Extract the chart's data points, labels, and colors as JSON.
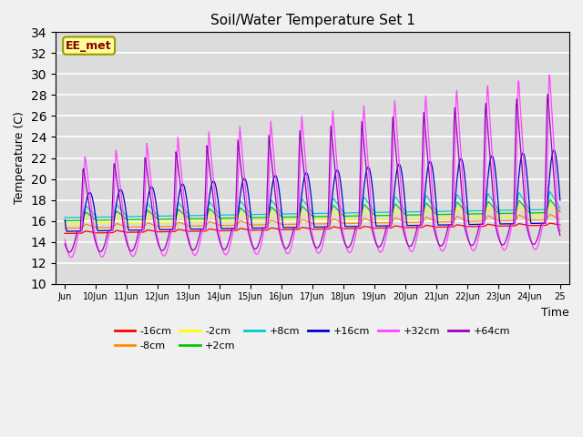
{
  "title": "Soil/Water Temperature Set 1",
  "xlabel": "Time",
  "ylabel": "Temperature (C)",
  "annotation": "EE_met",
  "annotation_color": "#8B0000",
  "annotation_bg": "#FFFF99",
  "annotation_edge": "#999900",
  "ylim": [
    10,
    34
  ],
  "yticks": [
    10,
    12,
    14,
    16,
    18,
    20,
    22,
    24,
    26,
    28,
    30,
    32,
    34
  ],
  "xtick_labels": [
    "Jun",
    "10Jun",
    "11Jun",
    "12Jun",
    "13Jun",
    "14Jun",
    "15Jun",
    "16Jun",
    "17Jun",
    "18Jun",
    "19Jun",
    "20Jun",
    "21Jun",
    "22Jun",
    "23Jun",
    "24Jun",
    "25"
  ],
  "plot_bg_color": "#DCDCDC",
  "fig_bg_color": "#F0F0F0",
  "series_colors": [
    "#FF0000",
    "#FF8C00",
    "#FFFF00",
    "#00CC00",
    "#00CCCC",
    "#0000CC",
    "#FF44FF",
    "#9900BB"
  ],
  "series_labels": [
    "-16cm",
    "-8cm",
    "-2cm",
    "+2cm",
    "+8cm",
    "+16cm",
    "+32cm",
    "+64cm"
  ],
  "legend_ncol_row1": 6,
  "legend_ncol_row2": 2
}
